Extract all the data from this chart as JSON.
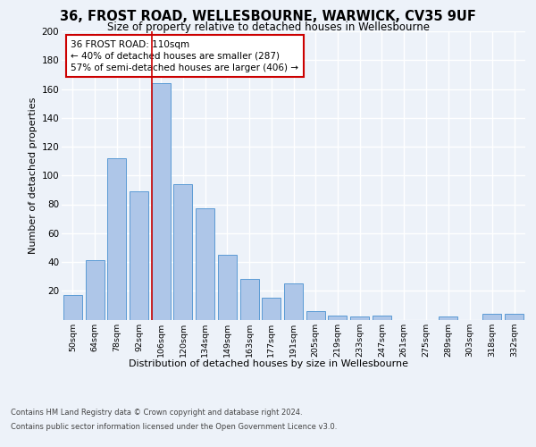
{
  "title_line1": "36, FROST ROAD, WELLESBOURNE, WARWICK, CV35 9UF",
  "title_line2": "Size of property relative to detached houses in Wellesbourne",
  "xlabel": "Distribution of detached houses by size in Wellesbourne",
  "ylabel": "Number of detached properties",
  "categories": [
    "50sqm",
    "64sqm",
    "78sqm",
    "92sqm",
    "106sqm",
    "120sqm",
    "134sqm",
    "149sqm",
    "163sqm",
    "177sqm",
    "191sqm",
    "205sqm",
    "219sqm",
    "233sqm",
    "247sqm",
    "261sqm",
    "275sqm",
    "289sqm",
    "303sqm",
    "318sqm",
    "332sqm"
  ],
  "values": [
    17,
    41,
    112,
    89,
    164,
    94,
    77,
    45,
    28,
    15,
    25,
    6,
    3,
    2,
    3,
    0,
    0,
    2,
    0,
    4,
    4
  ],
  "bar_color": "#aec6e8",
  "bar_edge_color": "#5b9bd5",
  "highlight_bar_index": 4,
  "vline_color": "#cc0000",
  "annotation_text": "36 FROST ROAD: 110sqm\n← 40% of detached houses are smaller (287)\n57% of semi-detached houses are larger (406) →",
  "annotation_box_color": "#ffffff",
  "annotation_box_edge_color": "#cc0000",
  "footer_line1": "Contains HM Land Registry data © Crown copyright and database right 2024.",
  "footer_line2": "Contains public sector information licensed under the Open Government Licence v3.0.",
  "ylim": [
    0,
    200
  ],
  "yticks": [
    0,
    20,
    40,
    60,
    80,
    100,
    120,
    140,
    160,
    180,
    200
  ],
  "bg_color": "#edf2f9",
  "plot_bg_color": "#edf2f9",
  "grid_color": "#ffffff"
}
